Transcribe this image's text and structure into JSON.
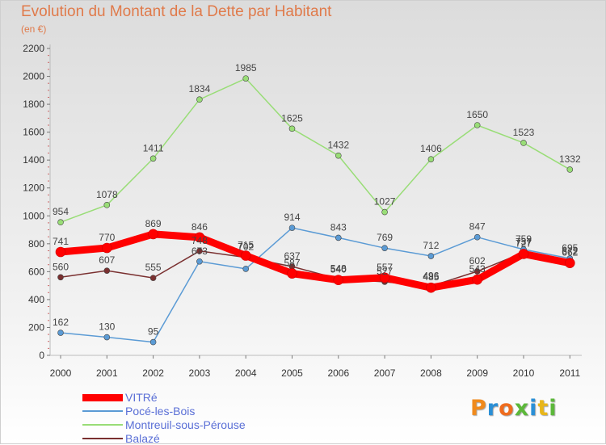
{
  "header": {
    "title": "Evolution du Montant de la Dette par Habitant",
    "unit": "(en €)"
  },
  "logo": {
    "letters": [
      "P",
      "r",
      "o",
      "x",
      "i",
      "t",
      "i"
    ],
    "colors": [
      "#f08a1c",
      "#2a8fd6",
      "#ef6c1e",
      "#5cb83a",
      "#2a8fd6",
      "#e8b61a",
      "#5cb83a"
    ]
  },
  "chart_data": {
    "type": "line",
    "title": "Evolution du Montant de la Dette par Habitant",
    "subtitle": "(en €)",
    "categories": [
      "2000",
      "2001",
      "2002",
      "2003",
      "2004",
      "2005",
      "2006",
      "2007",
      "2008",
      "2009",
      "2010",
      "2011"
    ],
    "ylim": [
      0,
      2200
    ],
    "yticks": [
      "0",
      "200",
      "400",
      "600",
      "800",
      "1000",
      "1200",
      "1400",
      "1600",
      "1800",
      "2000",
      "2200"
    ],
    "grid": false,
    "legend_position": "bottom-left",
    "series": [
      {
        "name": "VITRé",
        "color": "#ff0000",
        "values": [
          741,
          770,
          869,
          846,
          715,
          587,
          540,
          557,
          485,
          543,
          727,
          662
        ],
        "labels": [
          "741",
          "770",
          "869",
          "846",
          "715",
          "587",
          "540",
          "557",
          "485",
          "543",
          "727",
          "662"
        ]
      },
      {
        "name": "Pocé-les-Bois",
        "color": "#5b9bd5",
        "values": [
          162,
          130,
          95,
          673,
          620,
          914,
          843,
          769,
          712,
          847,
          759,
          695
        ],
        "labels": [
          "162",
          "130",
          "95",
          "673",
          "",
          "914",
          "843",
          "769",
          "712",
          "847",
          "759",
          "695"
        ]
      },
      {
        "name": "Montreuil-sous-Pérouse",
        "color": "#99dd77",
        "values": [
          954,
          1078,
          1411,
          1834,
          1985,
          1625,
          1432,
          1027,
          1406,
          1650,
          1523,
          1332
        ],
        "labels": [
          "954",
          "1078",
          "1411",
          "1834",
          "1985",
          "1625",
          "1432",
          "1027",
          "1406",
          "1650",
          "1523",
          "1332"
        ]
      },
      {
        "name": "Balazé",
        "color": "#7a3030",
        "values": [
          560,
          607,
          555,
          748,
          702,
          637,
          548,
          527,
          496,
          602,
          737,
          672
        ],
        "labels": [
          "560",
          "607",
          "555",
          "748",
          "702",
          "637",
          "548",
          "527",
          "496",
          "602",
          "737",
          "672"
        ]
      }
    ]
  }
}
